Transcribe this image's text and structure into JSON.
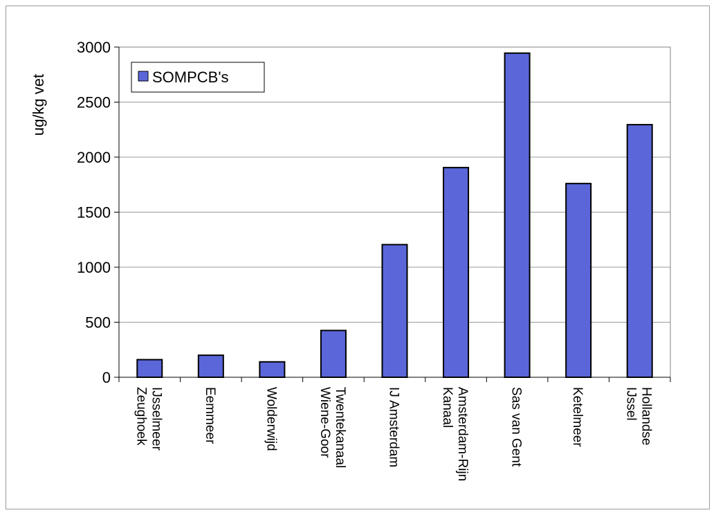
{
  "chart_data": {
    "type": "bar",
    "title": "",
    "xlabel": "",
    "ylabel": "ug/kg vet",
    "ylim": [
      0,
      3000
    ],
    "yticks": [
      0,
      500,
      1000,
      1500,
      2000,
      2500,
      3000
    ],
    "grid": true,
    "legend": "top-left",
    "categories": [
      [
        "IJsselmeer",
        "Zeughoek"
      ],
      [
        "Eemmeer"
      ],
      [
        "Wolderwijd"
      ],
      [
        "Twentekanaal",
        "Wiene-Goor"
      ],
      [
        "IJ Amsterdam"
      ],
      [
        "Amsterdam-Rijn",
        "Kanaal"
      ],
      [
        "Sas van Gent"
      ],
      [
        "Ketelmeer"
      ],
      [
        "Hollandse",
        "IJssel"
      ]
    ],
    "series": [
      {
        "name": "SOMPCB's",
        "color": "#5b67d9",
        "values": [
          160,
          200,
          140,
          425,
          1205,
          1905,
          2945,
          1760,
          2295
        ]
      }
    ]
  }
}
